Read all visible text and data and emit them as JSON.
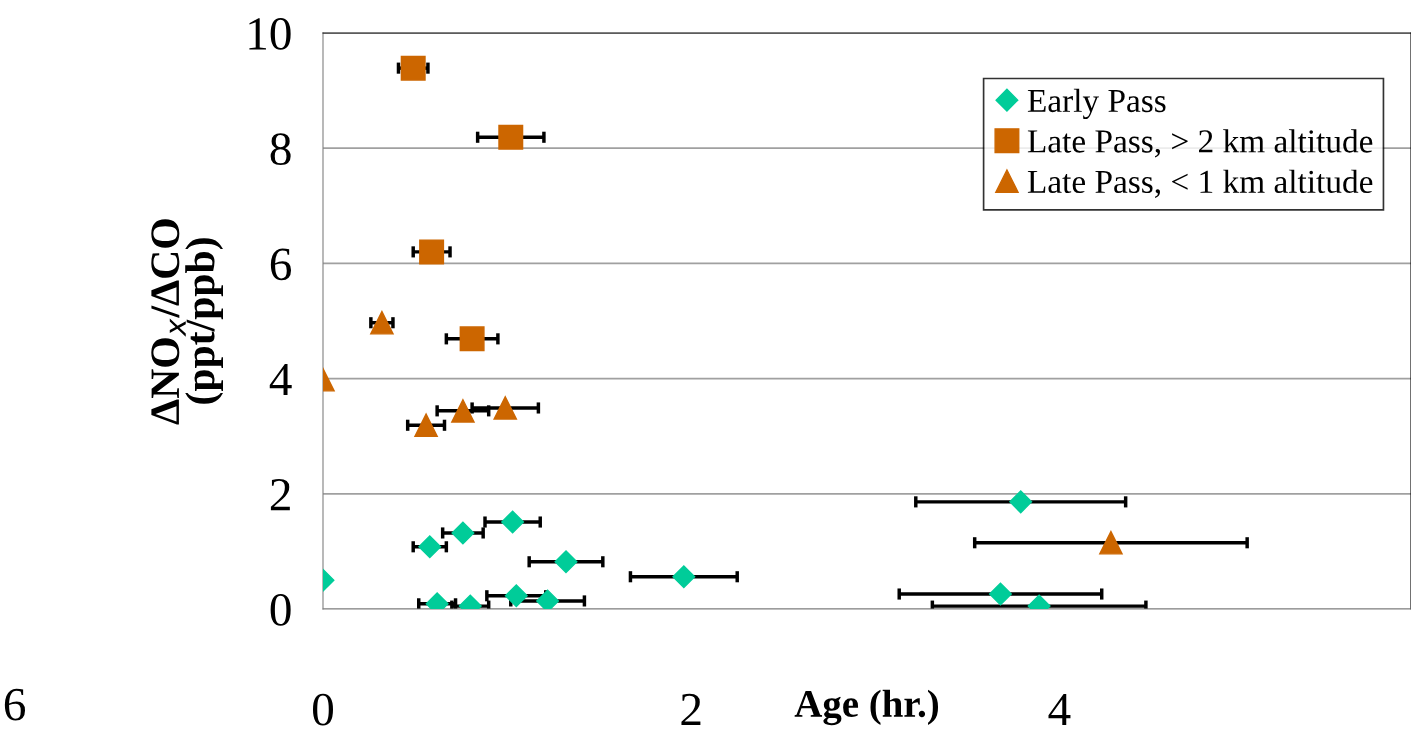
{
  "chart_data": {
    "type": "scatter",
    "xlabel": "Age (hr.)",
    "ylabel": "ΔNO$_{x}$/ΔCO\n(ppt/ppb)",
    "xlim": [
      0,
      5.91
    ],
    "xticks": [
      0,
      2,
      4
    ],
    "ylim": [
      0,
      10
    ],
    "yticks": [
      0,
      2,
      4,
      6,
      8,
      10
    ],
    "grid": "y",
    "legend": "top right",
    "annotations": [
      "6"
    ],
    "series": [
      {
        "name": "Early Pass",
        "color": "#00cc99",
        "marker": "diamond",
        "x": [
          0,
          0.58,
          0.76,
          1.03,
          1.32,
          1.96,
          0.62,
          0.8,
          1.05,
          1.22,
          3.79,
          3.68,
          3.89
        ],
        "values": [
          0.5,
          1.08,
          1.32,
          1.51,
          0.82,
          0.56,
          0.09,
          0.05,
          0.23,
          0.14,
          1.86,
          0.26,
          0.05
        ],
        "xerrors": [
          null,
          0.09,
          0.11,
          0.15,
          0.2,
          0.29,
          0.1,
          0.1,
          0.16,
          0.2,
          0.57,
          0.55,
          0.58
        ]
      },
      {
        "name": "Late Pass, > 2 km altitude",
        "color": "#cc6600",
        "marker": "square",
        "x": [
          0.49,
          1.02,
          0.59,
          0.81
        ],
        "values": [
          9.39,
          8.19,
          6.2,
          4.69
        ],
        "xerrors": [
          0.08,
          0.18,
          0.1,
          0.14
        ]
      },
      {
        "name": "Late Pass, < 1 km altitude",
        "color": "#cc6600",
        "marker": "triangle",
        "x": [
          0,
          0.32,
          0.56,
          0.76,
          0.99,
          4.28
        ],
        "values": [
          3.98,
          4.97,
          3.19,
          3.44,
          3.49,
          1.15
        ],
        "xerrors": [
          null,
          0.06,
          0.1,
          0.14,
          0.18,
          0.74
        ]
      }
    ]
  }
}
